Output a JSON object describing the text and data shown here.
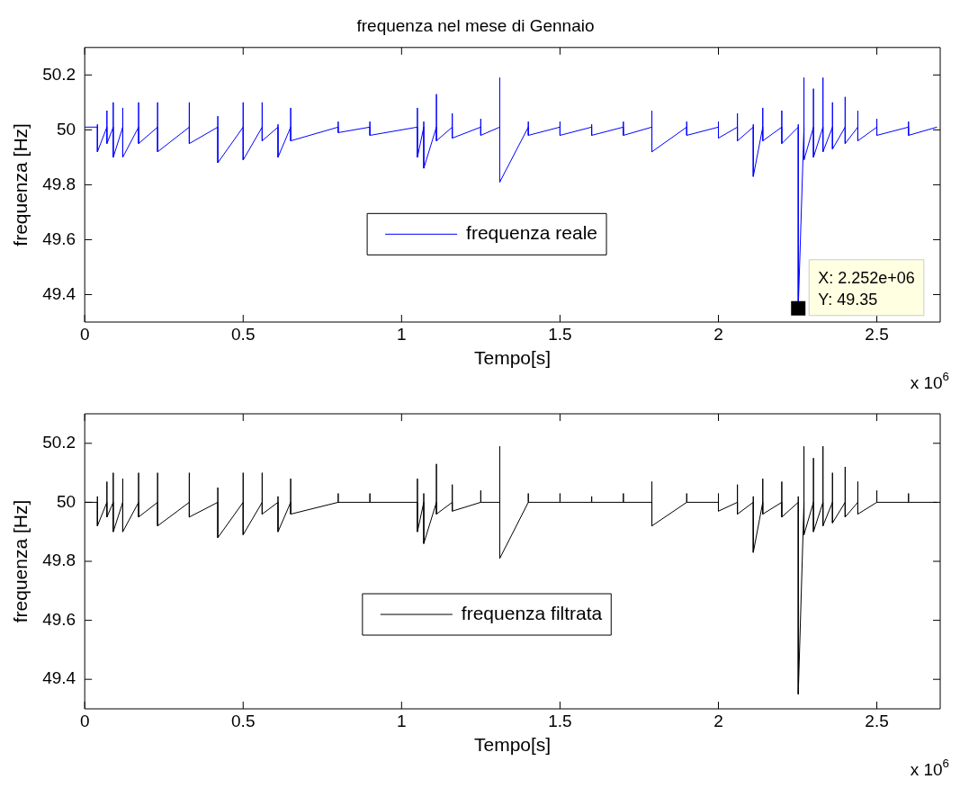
{
  "chart_data": [
    {
      "type": "line",
      "title": "frequenza nel mese di Gennaio",
      "xlabel": "Tempo[s]",
      "ylabel": "frequenza [Hz]",
      "xlim": [
        0,
        2.7
      ],
      "ylim": [
        49.3,
        50.3
      ],
      "xticks": [
        0,
        0.5,
        1,
        1.5,
        2,
        2.5
      ],
      "yticks": [
        49.4,
        49.6,
        49.8,
        50,
        50.2
      ],
      "grid": false,
      "legend": "center",
      "annotations": [
        "x 10$^{6}$",
        {
          "text": "X: 2.252e+06\nY: 49.35",
          "x": 2.252,
          "y": 49.35
        }
      ],
      "x": [
        0,
        0.04,
        0.04,
        0.04,
        0.07,
        0.07,
        0.07,
        0.09,
        0.09,
        0.09,
        0.12,
        0.12,
        0.12,
        0.17,
        0.17,
        0.17,
        0.23,
        0.23,
        0.23,
        0.33,
        0.33,
        0.33,
        0.42,
        0.42,
        0.42,
        0.5,
        0.5,
        0.5,
        0.56,
        0.56,
        0.56,
        0.61,
        0.61,
        0.61,
        0.65,
        0.65,
        0.65,
        0.8,
        0.8,
        0.8,
        0.9,
        0.9,
        0.9,
        1.05,
        1.05,
        1.05,
        1.07,
        1.07,
        1.07,
        1.11,
        1.11,
        1.11,
        1.16,
        1.16,
        1.16,
        1.25,
        1.25,
        1.25,
        1.31,
        1.31,
        1.31,
        1.4,
        1.4,
        1.4,
        1.5,
        1.5,
        1.5,
        1.6,
        1.6,
        1.6,
        1.7,
        1.7,
        1.7,
        1.79,
        1.79,
        1.79,
        1.9,
        1.9,
        1.9,
        2.0,
        2.0,
        2.0,
        2.06,
        2.06,
        2.06,
        2.11,
        2.11,
        2.11,
        2.14,
        2.14,
        2.14,
        2.2,
        2.2,
        2.2,
        2.252,
        2.252,
        2.252,
        2.27,
        2.27,
        2.27,
        2.3,
        2.3,
        2.3,
        2.33,
        2.33,
        2.33,
        2.36,
        2.36,
        2.36,
        2.4,
        2.4,
        2.4,
        2.44,
        2.44,
        2.44,
        2.5,
        2.5,
        2.5,
        2.6,
        2.6,
        2.6,
        2.69
      ],
      "series": [
        {
          "name": "frequenza reale",
          "color": "#0000ff",
          "values": [
            50.01,
            50.01,
            50.02,
            49.92,
            50.01,
            50.07,
            49.95,
            50.01,
            50.1,
            49.9,
            50.01,
            50.08,
            49.9,
            50.01,
            50.1,
            49.95,
            50.01,
            50.1,
            49.92,
            50.01,
            50.1,
            49.95,
            50.01,
            50.05,
            49.88,
            50.01,
            50.1,
            49.89,
            50.01,
            50.1,
            49.96,
            50.01,
            50.02,
            49.9,
            50.01,
            50.08,
            49.96,
            50.01,
            50.03,
            49.99,
            50.01,
            50.03,
            49.98,
            50.01,
            50.08,
            49.9,
            50.01,
            50.03,
            49.86,
            50.01,
            50.13,
            49.96,
            50.01,
            50.06,
            49.97,
            50.01,
            50.04,
            49.98,
            50.01,
            50.19,
            49.81,
            50.01,
            50.03,
            49.98,
            50.01,
            50.03,
            49.98,
            50.01,
            50.02,
            49.98,
            50.01,
            50.03,
            49.98,
            50.01,
            50.07,
            49.92,
            50.01,
            50.03,
            49.98,
            50.01,
            50.03,
            49.97,
            50.01,
            50.06,
            49.96,
            50.01,
            50.02,
            49.83,
            50.01,
            50.08,
            49.96,
            50.01,
            50.07,
            49.95,
            50.01,
            50.02,
            49.35,
            50.01,
            50.19,
            49.89,
            50.01,
            50.15,
            49.9,
            50.01,
            50.19,
            49.92,
            50.01,
            50.1,
            49.93,
            50.01,
            50.12,
            49.95,
            50.01,
            50.07,
            49.96,
            50.01,
            50.04,
            49.98,
            50.01,
            50.03,
            49.98,
            50.01
          ]
        }
      ]
    },
    {
      "type": "line",
      "xlabel": "Tempo[s]",
      "ylabel": "frequenza [Hz]",
      "xlim": [
        0,
        2.7
      ],
      "ylim": [
        49.3,
        50.3
      ],
      "xticks": [
        0,
        0.5,
        1,
        1.5,
        2,
        2.5
      ],
      "yticks": [
        49.4,
        49.6,
        49.8,
        50,
        50.2
      ],
      "grid": false,
      "legend": "center",
      "annotations": [
        "x 10$^{6}$"
      ],
      "x": [
        0,
        0.04,
        0.04,
        0.04,
        0.07,
        0.07,
        0.07,
        0.09,
        0.09,
        0.09,
        0.12,
        0.12,
        0.12,
        0.17,
        0.17,
        0.17,
        0.23,
        0.23,
        0.23,
        0.33,
        0.33,
        0.33,
        0.42,
        0.42,
        0.42,
        0.5,
        0.5,
        0.5,
        0.56,
        0.56,
        0.56,
        0.61,
        0.61,
        0.61,
        0.65,
        0.65,
        0.65,
        0.8,
        0.8,
        0.8,
        0.9,
        0.9,
        0.9,
        1.05,
        1.05,
        1.05,
        1.07,
        1.07,
        1.07,
        1.11,
        1.11,
        1.11,
        1.16,
        1.16,
        1.16,
        1.25,
        1.25,
        1.25,
        1.31,
        1.31,
        1.31,
        1.4,
        1.4,
        1.4,
        1.5,
        1.5,
        1.5,
        1.6,
        1.6,
        1.6,
        1.7,
        1.7,
        1.7,
        1.79,
        1.79,
        1.79,
        1.9,
        1.9,
        1.9,
        2.0,
        2.0,
        2.0,
        2.06,
        2.06,
        2.06,
        2.11,
        2.11,
        2.11,
        2.14,
        2.14,
        2.14,
        2.2,
        2.2,
        2.2,
        2.252,
        2.252,
        2.252,
        2.27,
        2.27,
        2.27,
        2.3,
        2.3,
        2.3,
        2.33,
        2.33,
        2.33,
        2.36,
        2.36,
        2.36,
        2.4,
        2.4,
        2.4,
        2.44,
        2.44,
        2.44,
        2.5,
        2.5,
        2.5,
        2.6,
        2.6,
        2.6,
        2.69
      ],
      "series": [
        {
          "name": "frequenza filtrata",
          "color": "#000000",
          "values": [
            50.0,
            50.0,
            50.02,
            49.92,
            50.0,
            50.07,
            49.95,
            50.0,
            50.1,
            49.9,
            50.0,
            50.08,
            49.9,
            50.0,
            50.1,
            49.95,
            50.0,
            50.1,
            49.92,
            50.0,
            50.1,
            49.95,
            50.0,
            50.05,
            49.88,
            50.0,
            50.1,
            49.89,
            50.0,
            50.1,
            49.96,
            50.0,
            50.02,
            49.9,
            50.0,
            50.08,
            49.96,
            50.0,
            50.03,
            50.0,
            50.0,
            50.03,
            50.0,
            50.0,
            50.08,
            49.9,
            50.0,
            50.03,
            49.86,
            50.0,
            50.13,
            49.96,
            50.0,
            50.06,
            49.97,
            50.0,
            50.04,
            50.0,
            50.0,
            50.19,
            49.81,
            50.0,
            50.03,
            50.0,
            50.0,
            50.03,
            50.0,
            50.0,
            50.02,
            50.0,
            50.0,
            50.03,
            50.0,
            50.0,
            50.07,
            49.92,
            50.0,
            50.03,
            50.0,
            50.0,
            50.03,
            49.97,
            50.0,
            50.06,
            49.96,
            50.0,
            50.02,
            49.83,
            50.0,
            50.08,
            49.96,
            50.0,
            50.07,
            49.95,
            50.0,
            50.02,
            49.35,
            50.0,
            50.19,
            49.89,
            50.0,
            50.15,
            49.9,
            50.0,
            50.19,
            49.92,
            50.0,
            50.1,
            49.93,
            50.0,
            50.12,
            49.95,
            50.0,
            50.07,
            49.96,
            50.0,
            50.04,
            50.0,
            50.0,
            50.03,
            50.0,
            50.0
          ]
        }
      ]
    }
  ]
}
